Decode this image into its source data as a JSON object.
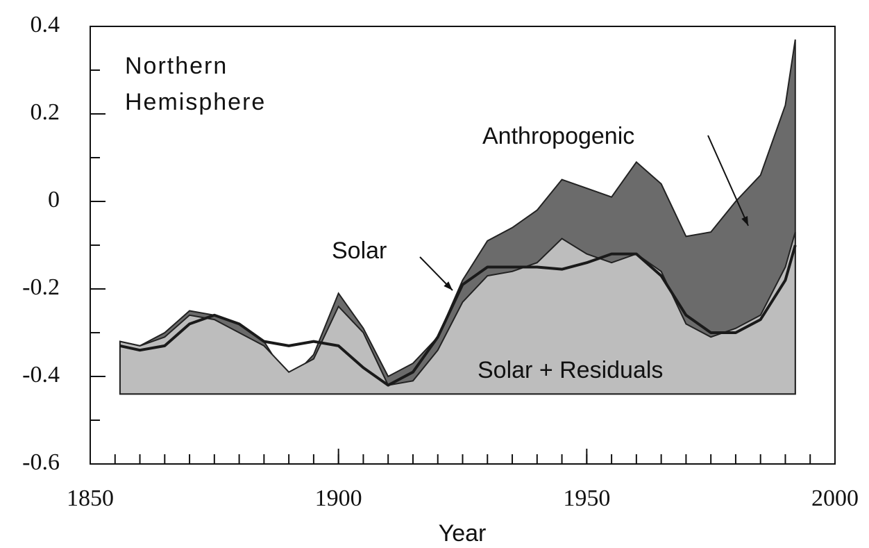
{
  "chart_data": {
    "type": "line",
    "title": [
      "Northern",
      "Hemisphere"
    ],
    "xlabel": "Year",
    "xlim": [
      1850,
      2000
    ],
    "xticks": [
      1850,
      1900,
      1950,
      2000
    ],
    "xminor_step": 5,
    "ylim": [
      -0.6,
      0.4
    ],
    "yticks": [
      0.4,
      0.2,
      0,
      -0.2,
      -0.4,
      -0.6
    ],
    "yminor_step": 0.1,
    "fill_to": -0.44,
    "x": [
      1856,
      1860,
      1865,
      1870,
      1875,
      1880,
      1885,
      1890,
      1895,
      1900,
      1905,
      1910,
      1915,
      1920,
      1925,
      1930,
      1935,
      1940,
      1945,
      1950,
      1955,
      1960,
      1965,
      1970,
      1975,
      1980,
      1985,
      1990,
      1992
    ],
    "series": [
      {
        "name": "Anthropogenic",
        "style": "area",
        "color": "#6b6b6b",
        "values": [
          -0.32,
          -0.33,
          -0.3,
          -0.25,
          -0.26,
          -0.28,
          -0.32,
          -0.41,
          -0.35,
          -0.21,
          -0.29,
          -0.4,
          -0.37,
          -0.31,
          -0.18,
          -0.09,
          -0.06,
          -0.02,
          0.05,
          0.03,
          0.01,
          0.09,
          0.04,
          -0.08,
          -0.07,
          0.0,
          0.06,
          0.22,
          0.37
        ]
      },
      {
        "name": "Solar + Residuals",
        "style": "area",
        "color": "#bdbdbd",
        "values": [
          -0.32,
          -0.33,
          -0.31,
          -0.26,
          -0.27,
          -0.3,
          -0.33,
          -0.39,
          -0.36,
          -0.24,
          -0.3,
          -0.42,
          -0.41,
          -0.34,
          -0.23,
          -0.17,
          -0.16,
          -0.14,
          -0.085,
          -0.12,
          -0.14,
          -0.12,
          -0.16,
          -0.28,
          -0.31,
          -0.29,
          -0.26,
          -0.15,
          -0.07
        ]
      },
      {
        "name": "Solar",
        "style": "line",
        "color": "#1a1a1a",
        "values": [
          -0.33,
          -0.34,
          -0.33,
          -0.28,
          -0.26,
          -0.28,
          -0.32,
          -0.33,
          -0.32,
          -0.33,
          -0.38,
          -0.42,
          -0.39,
          -0.31,
          -0.19,
          -0.15,
          -0.15,
          -0.15,
          -0.155,
          -0.14,
          -0.12,
          -0.12,
          -0.17,
          -0.26,
          -0.3,
          -0.3,
          -0.27,
          -0.18,
          -0.1
        ]
      }
    ]
  }
}
